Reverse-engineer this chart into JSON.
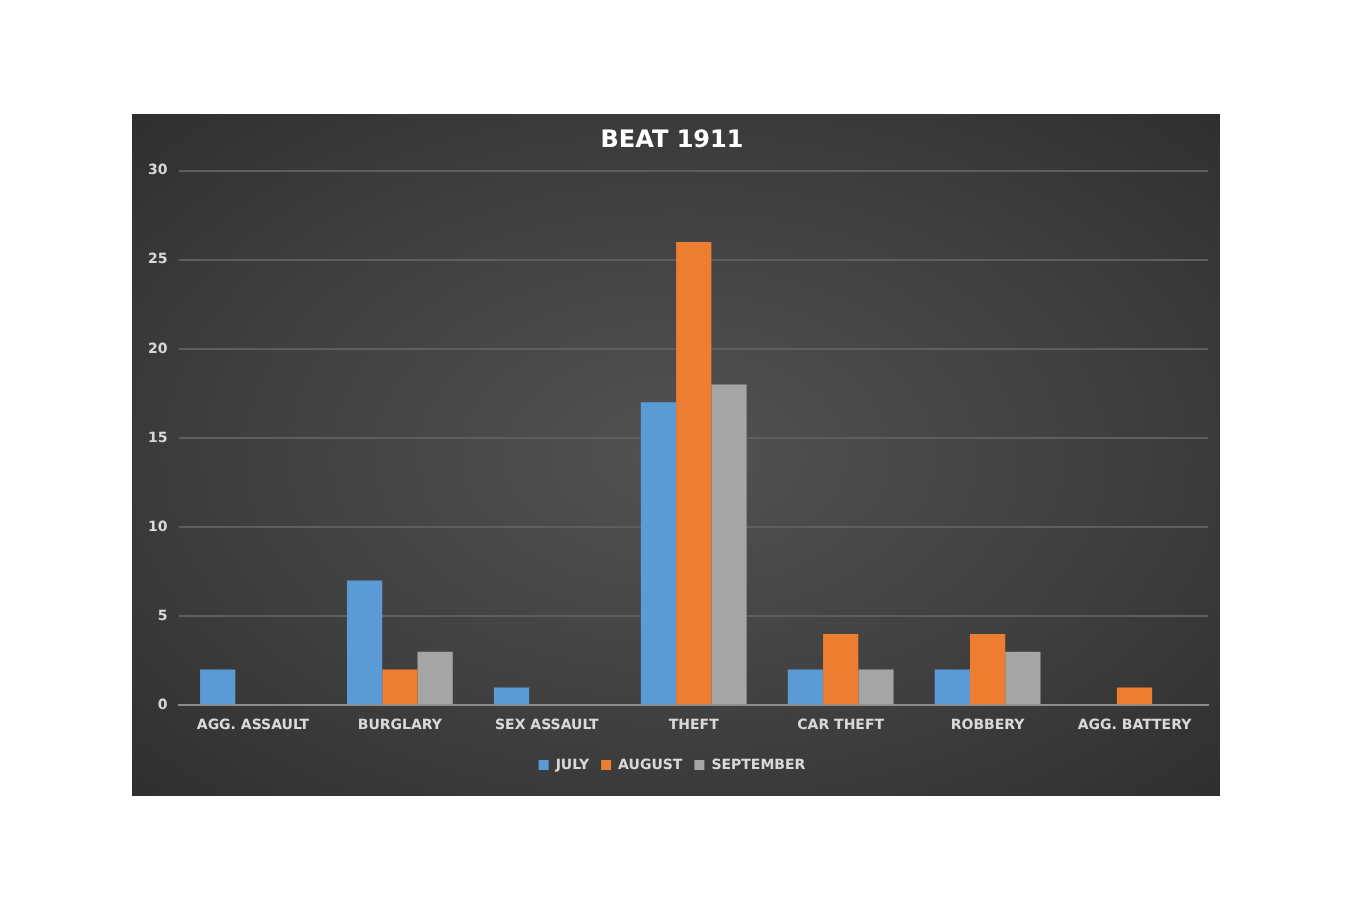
{
  "chart_data": {
    "type": "bar",
    "title": "BEAT 1911",
    "categories": [
      "AGG. ASSAULT",
      "BURGLARY",
      "SEX ASSAULT",
      "THEFT",
      "CAR THEFT",
      "ROBBERY",
      "AGG. BATTERY"
    ],
    "series": [
      {
        "name": "JULY",
        "color": "#5b9bd5",
        "values": [
          2,
          7,
          1,
          17,
          2,
          2,
          null
        ]
      },
      {
        "name": "AUGUST",
        "color": "#ed7d31",
        "values": [
          null,
          2,
          null,
          26,
          4,
          4,
          1
        ]
      },
      {
        "name": "SEPTEMBER",
        "color": "#a5a5a5",
        "values": [
          null,
          3,
          null,
          18,
          2,
          3,
          null
        ]
      }
    ],
    "ylim": [
      0,
      30
    ],
    "yticks": [
      0,
      5,
      10,
      15,
      20,
      25,
      30
    ],
    "grid": "y",
    "legend": "bottom"
  }
}
